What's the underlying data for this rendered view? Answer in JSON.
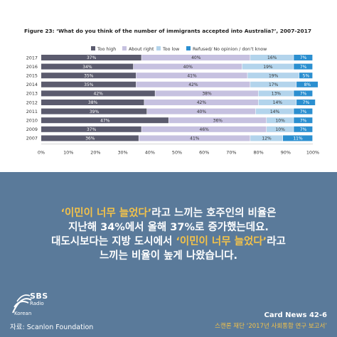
{
  "chart_data": {
    "type": "bar",
    "orientation": "horizontal",
    "stacked": "percent",
    "title": "Figure 23: ‘What do you think of the number of immigrants accepted into Australia?’, 2007-2017",
    "categories": [
      "2017",
      "2016",
      "2015",
      "2014",
      "2013",
      "2012",
      "2011",
      "2010",
      "2009",
      "2007"
    ],
    "series": [
      {
        "name": "Too high",
        "color": "#5b5b6e",
        "values": [
          37,
          34,
          35,
          35,
          42,
          38,
          39,
          47,
          37,
          36
        ]
      },
      {
        "name": "About right",
        "color": "#c6c1e0",
        "values": [
          40,
          40,
          41,
          42,
          38,
          42,
          40,
          36,
          46,
          41
        ]
      },
      {
        "name": "Too low",
        "color": "#b3d4ec",
        "values": [
          16,
          19,
          19,
          17,
          13,
          14,
          14,
          10,
          10,
          12
        ]
      },
      {
        "name": "Refused/ No opinion / don’t know",
        "color": "#2b8fd0",
        "values": [
          7,
          7,
          5,
          8,
          7,
          7,
          7,
          7,
          7,
          11
        ]
      }
    ],
    "data_labels": [
      [
        "37%",
        "40%",
        "16%",
        "7%"
      ],
      [
        "34%",
        "40%",
        "19%",
        "7%"
      ],
      [
        "35%",
        "41%",
        "19%",
        "5%"
      ],
      [
        "35%",
        "42%",
        "17%",
        "8%"
      ],
      [
        "42%",
        "38%",
        "13%",
        "7%"
      ],
      [
        "38%",
        "42%",
        "14%",
        "7%"
      ],
      [
        "39%",
        "40%",
        "14%",
        "7%"
      ],
      [
        "47%",
        "36%",
        "10%",
        "7%"
      ],
      [
        "37%",
        "46%",
        "10%",
        "7%"
      ],
      [
        "36%",
        "41%",
        "12%",
        "11%"
      ]
    ],
    "xlim": [
      0,
      100
    ],
    "x_ticks": [
      "0%",
      "10%",
      "20%",
      "30%",
      "40%",
      "50%",
      "60%",
      "70%",
      "80%",
      "90%",
      "100%"
    ],
    "legend_position": "top-right",
    "grid": false
  },
  "headline": {
    "line1_highlight": "‘이민이 너무 늘었다’",
    "line1_rest": "라고 느끼는 호주인의 비율은",
    "line2": "지난해 34%에서 올해 37%로 증가했는데요.",
    "line3_pre": "대도시보다는 지방 도시에서 ",
    "line3_highlight": "‘이민이 너무 늘었다’",
    "line3_post": "라고",
    "line4": "느끼는 비율이 높게 나왔습니다."
  },
  "footer": {
    "logo_brand": "SBS",
    "logo_sub": "Radio",
    "logo_lang": "Korean",
    "source": "자료: Scanlon Foundation",
    "card_news": "Card News 42-6",
    "report": "스캔론 재단 ‘2017년 사회통합 연구 보고서’"
  },
  "colors": {
    "panel_blue": "#5a7a9a",
    "highlight_yellow": "#f3c24a"
  }
}
